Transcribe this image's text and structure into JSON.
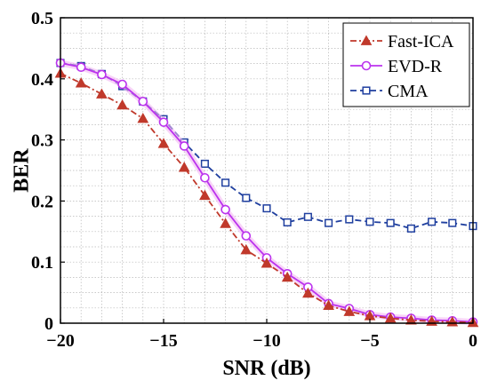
{
  "chart_data": {
    "type": "line",
    "xlabel": "SNR (dB)",
    "ylabel": "BER",
    "xlim": [
      -20,
      0
    ],
    "ylim": [
      0,
      0.5
    ],
    "xticks": [
      -20,
      -15,
      -10,
      -5,
      0
    ],
    "xtick_labels": [
      "−20",
      "−15",
      "−10",
      "−5",
      "0"
    ],
    "yticks": [
      0,
      0.1,
      0.2,
      0.3,
      0.4,
      0.5
    ],
    "ytick_labels": [
      "0",
      "0.1",
      "0.2",
      "0.3",
      "0.4",
      "0.5"
    ],
    "grid": true,
    "legend_position": "top-right",
    "x": [
      -20,
      -19,
      -18,
      -17,
      -16,
      -15,
      -14,
      -13,
      -12,
      -11,
      -10,
      -9,
      -8,
      -7,
      -6,
      -5,
      -4,
      -3,
      -2,
      -1,
      0
    ],
    "series": [
      {
        "name": "Fast-ICA",
        "color": "#c0392b",
        "line_style": "dash-dot",
        "marker": "triangle",
        "values": [
          0.409,
          0.393,
          0.375,
          0.357,
          0.335,
          0.294,
          0.255,
          0.209,
          0.163,
          0.12,
          0.098,
          0.075,
          0.049,
          0.029,
          0.019,
          0.012,
          0.008,
          0.005,
          0.003,
          0.002,
          0.001
        ]
      },
      {
        "name": "EVD-R",
        "color": "#bb33ee",
        "line_style": "solid",
        "marker": "circle",
        "values": [
          0.426,
          0.419,
          0.407,
          0.391,
          0.363,
          0.329,
          0.29,
          0.238,
          0.186,
          0.143,
          0.107,
          0.081,
          0.059,
          0.032,
          0.024,
          0.014,
          0.01,
          0.008,
          0.005,
          0.004,
          0.002
        ]
      },
      {
        "name": "CMA",
        "color": "#1f3f9f",
        "line_style": "dashed",
        "marker": "square",
        "values": [
          0.426,
          0.421,
          0.408,
          0.388,
          0.363,
          0.334,
          0.296,
          0.261,
          0.23,
          0.205,
          0.188,
          0.165,
          0.174,
          0.164,
          0.17,
          0.166,
          0.164,
          0.155,
          0.166,
          0.164,
          0.159
        ]
      }
    ]
  }
}
